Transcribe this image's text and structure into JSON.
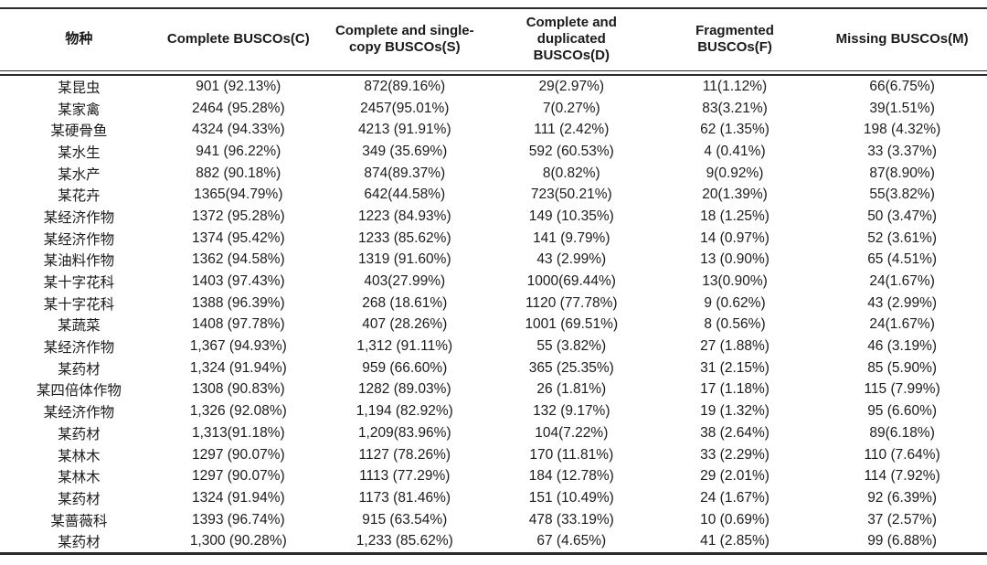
{
  "table": {
    "columns": [
      "物种",
      "Complete BUSCOs(C)",
      "Complete and single-\ncopy BUSCOs(S)",
      "Complete and\nduplicated\nBUSCOs(D)",
      "Fragmented\nBUSCOs(F)",
      "Missing BUSCOs(M)"
    ],
    "rows": [
      [
        "某昆虫",
        "901 (92.13%)",
        "872(89.16%)",
        "29(2.97%)",
        "11(1.12%)",
        "66(6.75%)"
      ],
      [
        "某家禽",
        "2464 (95.28%)",
        "2457(95.01%)",
        "7(0.27%)",
        "83(3.21%)",
        "39(1.51%)"
      ],
      [
        "某硬骨鱼",
        "4324 (94.33%)",
        "4213 (91.91%)",
        "111 (2.42%)",
        "62 (1.35%)",
        "198 (4.32%)"
      ],
      [
        "某水生",
        "941 (96.22%)",
        "349 (35.69%)",
        "592 (60.53%)",
        "4 (0.41%)",
        "33 (3.37%)"
      ],
      [
        "某水产",
        "882 (90.18%)",
        "874(89.37%)",
        "8(0.82%)",
        "9(0.92%)",
        "87(8.90%)"
      ],
      [
        "某花卉",
        "1365(94.79%)",
        "642(44.58%)",
        "723(50.21%)",
        "20(1.39%)",
        "55(3.82%)"
      ],
      [
        "某经济作物",
        "1372 (95.28%)",
        "1223 (84.93%)",
        "149 (10.35%)",
        "18 (1.25%)",
        "50 (3.47%)"
      ],
      [
        "某经济作物",
        "1374 (95.42%)",
        "1233 (85.62%)",
        "141 (9.79%)",
        "14 (0.97%)",
        "52 (3.61%)"
      ],
      [
        "某油料作物",
        "1362 (94.58%)",
        "1319 (91.60%)",
        "43 (2.99%)",
        "13 (0.90%)",
        "65 (4.51%)"
      ],
      [
        "某十字花科",
        "1403 (97.43%)",
        "403(27.99%)",
        "1000(69.44%)",
        "13(0.90%)",
        "24(1.67%)"
      ],
      [
        "某十字花科",
        "1388 (96.39%)",
        "268 (18.61%)",
        "1120 (77.78%)",
        "9 (0.62%)",
        "43 (2.99%)"
      ],
      [
        "某蔬菜",
        "1408 (97.78%)",
        "407 (28.26%)",
        "1001 (69.51%)",
        "8 (0.56%)",
        "24(1.67%)"
      ],
      [
        "某经济作物",
        "1,367 (94.93%)",
        "1,312 (91.11%)",
        "55 (3.82%)",
        "27 (1.88%)",
        "46 (3.19%)"
      ],
      [
        "某药材",
        "1,324 (91.94%)",
        "959 (66.60%)",
        "365 (25.35%)",
        "31 (2.15%)",
        "85 (5.90%)"
      ],
      [
        "某四倍体作物",
        "1308 (90.83%)",
        "1282 (89.03%)",
        "26 (1.81%)",
        "17 (1.18%)",
        "115 (7.99%)"
      ],
      [
        "某经济作物",
        "1,326 (92.08%)",
        "1,194 (82.92%)",
        "132 (9.17%)",
        "19 (1.32%)",
        "95 (6.60%)"
      ],
      [
        "某药材",
        "1,313(91.18%)",
        "1,209(83.96%)",
        "104(7.22%)",
        "38 (2.64%)",
        "89(6.18%)"
      ],
      [
        "某林木",
        "1297 (90.07%)",
        "1127 (78.26%)",
        "170 (11.81%)",
        "33 (2.29%)",
        "110 (7.64%)"
      ],
      [
        "某林木",
        "1297 (90.07%)",
        "1113 (77.29%)",
        "184 (12.78%)",
        "29 (2.01%)",
        "114 (7.92%)"
      ],
      [
        "某药材",
        "1324 (91.94%)",
        "1173 (81.46%)",
        "151 (10.49%)",
        "24 (1.67%)",
        "92 (6.39%)"
      ],
      [
        "某蔷薇科",
        "1393 (96.74%)",
        "915 (63.54%)",
        "478 (33.19%)",
        "10 (0.69%)",
        "37 (2.57%)"
      ],
      [
        "某药材",
        "1,300 (90.28%)",
        "1,233 (85.62%)",
        "67 (4.65%)",
        "41 (2.85%)",
        "99 (6.88%)"
      ]
    ]
  },
  "line_color": "#2a2a2a"
}
